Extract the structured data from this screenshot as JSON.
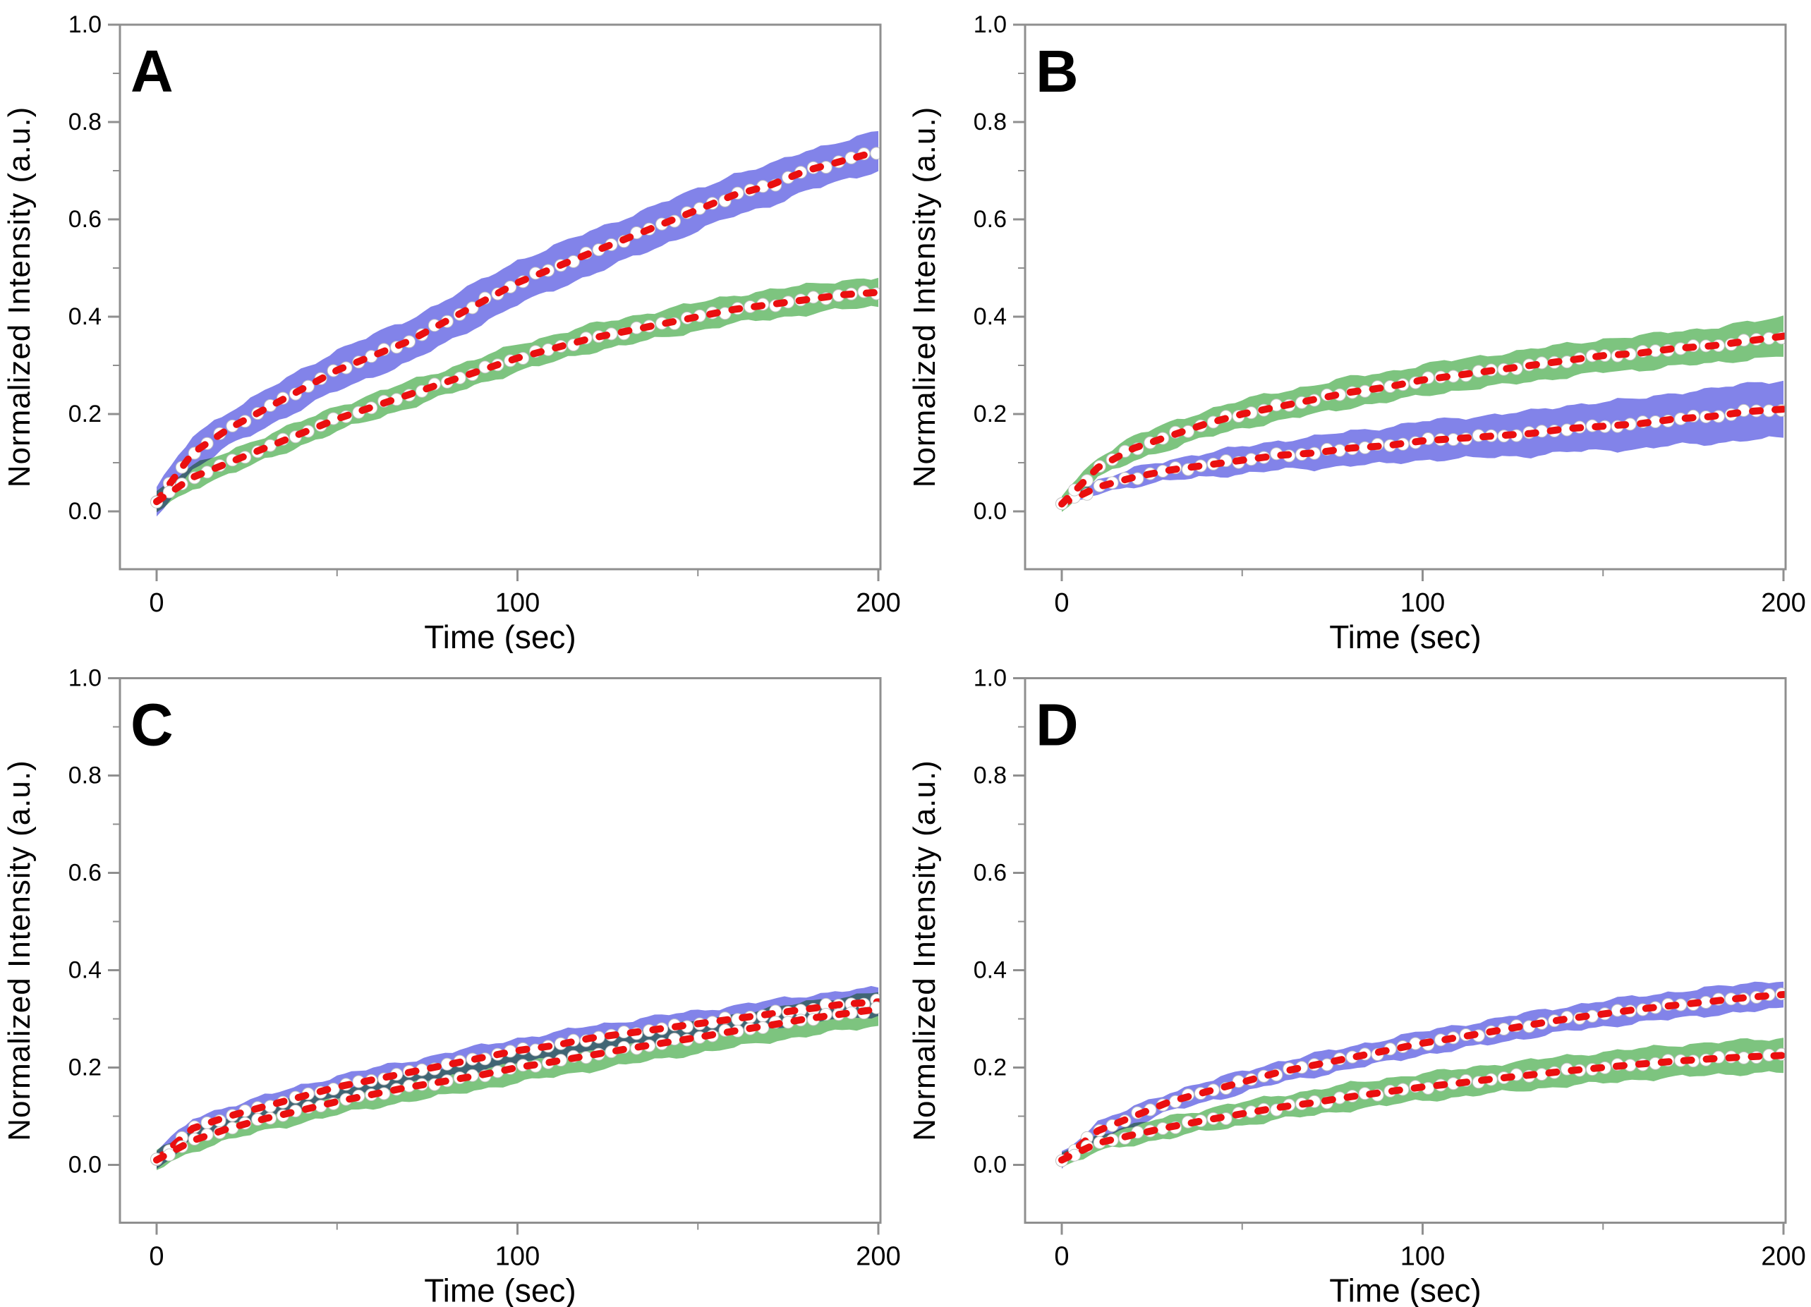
{
  "figure": {
    "background": "#ffffff",
    "colors": {
      "blue_band": "#8283e9",
      "green_band": "#7dc47f",
      "fit_line": "#ea0f0f",
      "marker_fill": "#ffffff",
      "marker_edge": "#c4c4c4",
      "axis": "#8f8f8f",
      "text": "#000000"
    },
    "axes": {
      "xlabel": "Time (sec)",
      "ylabel": "Normalized Intensity (a.u.)",
      "xlim": [
        -10,
        203
      ],
      "ylim": [
        -0.12,
        1.0
      ],
      "x_major_ticks": [
        0,
        100,
        200
      ],
      "x_minor_ticks": [
        50,
        150
      ],
      "x_tick_labels": [
        "0",
        "100",
        "200"
      ],
      "y_major_ticks": [
        0.0,
        0.2,
        0.4,
        0.6,
        0.8,
        1.0
      ],
      "y_minor_ticks": [
        0.1,
        0.3,
        0.5,
        0.7,
        0.9
      ],
      "y_tick_labels": [
        "0.0",
        "0.2",
        "0.4",
        "0.6",
        "0.8",
        "1.0"
      ],
      "grid": false,
      "legend": "none"
    },
    "chart_data": [
      {
        "panel": "A",
        "type": "area",
        "x": [
          0,
          10,
          20,
          30,
          40,
          50,
          60,
          70,
          80,
          90,
          100,
          110,
          120,
          130,
          140,
          150,
          160,
          170,
          180,
          190,
          200
        ],
        "series": [
          {
            "name": "blue-band",
            "color_key": "blue_band",
            "mean": [
              0.02,
              0.12,
              0.17,
              0.21,
              0.25,
              0.29,
              0.32,
              0.35,
              0.39,
              0.43,
              0.47,
              0.5,
              0.53,
              0.56,
              0.59,
              0.62,
              0.65,
              0.67,
              0.7,
              0.72,
              0.74
            ],
            "half_width": [
              0.03,
              0.034,
              0.036,
              0.038,
              0.04,
              0.042,
              0.043,
              0.044,
              0.045,
              0.045,
              0.045,
              0.045,
              0.045,
              0.044,
              0.044,
              0.043,
              0.043,
              0.042,
              0.042,
              0.041,
              0.04
            ]
          },
          {
            "name": "green-band",
            "color_key": "green_band",
            "mean": [
              0.02,
              0.07,
              0.1,
              0.13,
              0.16,
              0.19,
              0.215,
              0.24,
              0.265,
              0.29,
              0.315,
              0.335,
              0.355,
              0.37,
              0.385,
              0.4,
              0.415,
              0.425,
              0.435,
              0.445,
              0.45
            ],
            "half_width": [
              0.022,
              0.023,
              0.024,
              0.025,
              0.025,
              0.026,
              0.026,
              0.027,
              0.027,
              0.027,
              0.028,
              0.028,
              0.028,
              0.028,
              0.029,
              0.029,
              0.029,
              0.03,
              0.03,
              0.03,
              0.03
            ]
          }
        ]
      },
      {
        "panel": "B",
        "type": "area",
        "x": [
          0,
          10,
          20,
          30,
          40,
          50,
          60,
          70,
          80,
          90,
          100,
          110,
          120,
          130,
          140,
          150,
          160,
          170,
          180,
          190,
          200
        ],
        "series": [
          {
            "name": "blue-band",
            "color_key": "blue_band",
            "mean": [
              0.015,
              0.05,
              0.07,
              0.085,
              0.095,
              0.105,
              0.115,
              0.12,
              0.13,
              0.135,
              0.145,
              0.15,
              0.155,
              0.16,
              0.17,
              0.175,
              0.18,
              0.19,
              0.195,
              0.205,
              0.21
            ],
            "half_width": [
              0.01,
              0.014,
              0.018,
              0.022,
              0.025,
              0.028,
              0.03,
              0.033,
              0.035,
              0.038,
              0.04,
              0.042,
              0.044,
              0.046,
              0.048,
              0.05,
              0.052,
              0.054,
              0.056,
              0.058,
              0.06
            ]
          },
          {
            "name": "green-band",
            "color_key": "green_band",
            "mean": [
              0.015,
              0.09,
              0.13,
              0.155,
              0.18,
              0.2,
              0.215,
              0.23,
              0.245,
              0.255,
              0.27,
              0.28,
              0.29,
              0.3,
              0.31,
              0.32,
              0.325,
              0.335,
              0.34,
              0.35,
              0.36
            ],
            "half_width": [
              0.018,
              0.022,
              0.025,
              0.027,
              0.028,
              0.029,
              0.03,
              0.03,
              0.031,
              0.031,
              0.032,
              0.032,
              0.033,
              0.033,
              0.034,
              0.034,
              0.035,
              0.036,
              0.037,
              0.038,
              0.04
            ]
          }
        ]
      },
      {
        "panel": "C",
        "type": "area",
        "x": [
          0,
          10,
          20,
          30,
          40,
          50,
          60,
          70,
          80,
          90,
          100,
          110,
          120,
          130,
          140,
          150,
          160,
          170,
          180,
          190,
          200
        ],
        "series": [
          {
            "name": "blue-band",
            "color_key": "blue_band",
            "mean": [
              0.01,
              0.075,
              0.1,
              0.12,
              0.14,
              0.16,
              0.175,
              0.19,
              0.205,
              0.22,
              0.235,
              0.245,
              0.26,
              0.27,
              0.28,
              0.29,
              0.3,
              0.31,
              0.32,
              0.33,
              0.335
            ],
            "half_width": [
              0.018,
              0.02,
              0.021,
              0.022,
              0.023,
              0.023,
              0.024,
              0.024,
              0.025,
              0.025,
              0.025,
              0.026,
              0.026,
              0.026,
              0.027,
              0.027,
              0.027,
              0.028,
              0.028,
              0.028,
              0.028
            ]
          },
          {
            "name": "green-band",
            "color_key": "green_band",
            "mean": [
              0.01,
              0.05,
              0.075,
              0.095,
              0.112,
              0.13,
              0.145,
              0.16,
              0.172,
              0.185,
              0.2,
              0.212,
              0.225,
              0.238,
              0.25,
              0.262,
              0.275,
              0.287,
              0.3,
              0.31,
              0.32
            ],
            "half_width": [
              0.02,
              0.022,
              0.024,
              0.025,
              0.026,
              0.027,
              0.028,
              0.029,
              0.03,
              0.03,
              0.031,
              0.031,
              0.032,
              0.032,
              0.033,
              0.033,
              0.034,
              0.034,
              0.035,
              0.035,
              0.035
            ]
          }
        ]
      },
      {
        "panel": "D",
        "type": "area",
        "x": [
          0,
          10,
          20,
          30,
          40,
          50,
          60,
          70,
          80,
          90,
          100,
          110,
          120,
          130,
          140,
          150,
          160,
          170,
          180,
          190,
          200
        ],
        "series": [
          {
            "name": "blue-band",
            "color_key": "blue_band",
            "mean": [
              0.01,
              0.07,
              0.1,
              0.13,
              0.15,
              0.17,
              0.19,
              0.205,
              0.22,
              0.235,
              0.25,
              0.262,
              0.275,
              0.288,
              0.3,
              0.31,
              0.32,
              0.328,
              0.336,
              0.344,
              0.35
            ],
            "half_width": [
              0.016,
              0.018,
              0.019,
              0.02,
              0.021,
              0.022,
              0.022,
              0.023,
              0.023,
              0.024,
              0.024,
              0.025,
              0.025,
              0.026,
              0.026,
              0.027,
              0.027,
              0.028,
              0.028,
              0.029,
              0.03
            ]
          },
          {
            "name": "green-band",
            "color_key": "green_band",
            "mean": [
              0.01,
              0.045,
              0.062,
              0.078,
              0.092,
              0.105,
              0.118,
              0.128,
              0.14,
              0.15,
              0.16,
              0.168,
              0.177,
              0.185,
              0.193,
              0.2,
              0.207,
              0.213,
              0.218,
              0.222,
              0.225
            ],
            "half_width": [
              0.016,
              0.018,
              0.02,
              0.022,
              0.023,
              0.024,
              0.025,
              0.026,
              0.027,
              0.028,
              0.028,
              0.029,
              0.03,
              0.03,
              0.031,
              0.032,
              0.032,
              0.033,
              0.034,
              0.034,
              0.035
            ]
          }
        ]
      }
    ]
  }
}
